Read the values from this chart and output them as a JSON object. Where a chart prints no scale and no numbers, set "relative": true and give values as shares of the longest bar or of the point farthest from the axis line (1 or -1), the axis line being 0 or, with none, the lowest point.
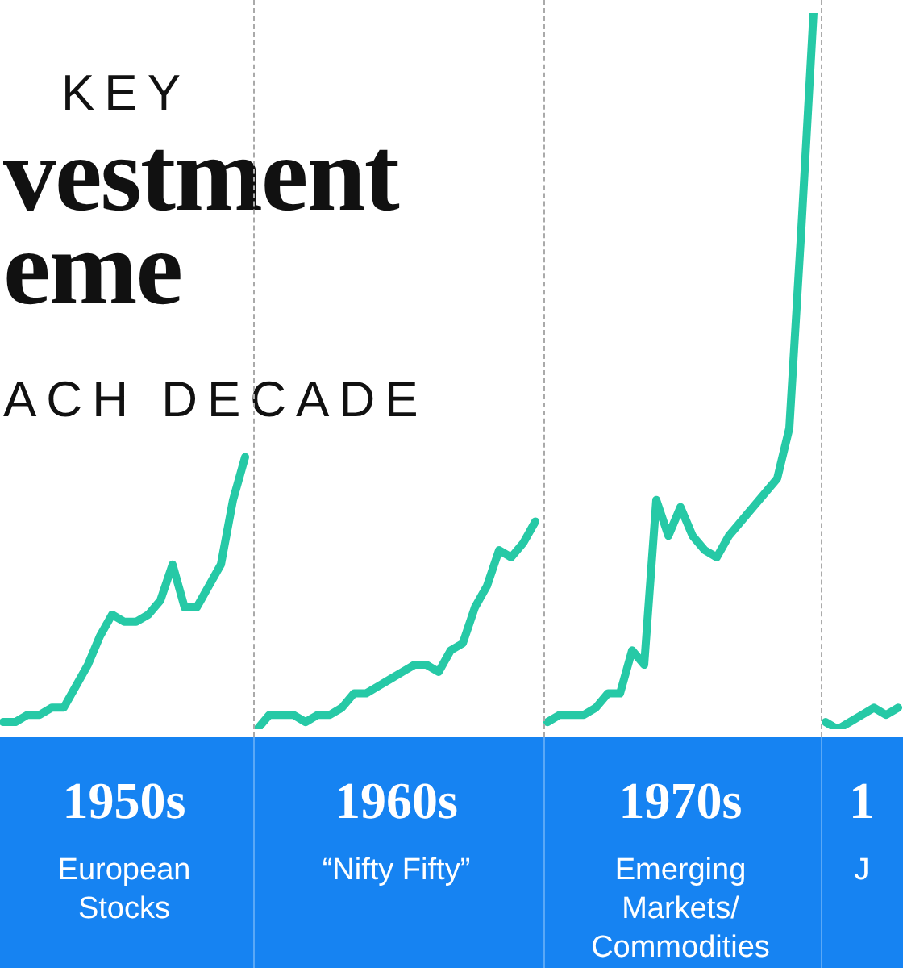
{
  "chart_data": {
    "type": "line",
    "subtitle": "KEY",
    "title": "vestment\neme",
    "annotations": [
      "ACH DECADE",
      "European Stocks",
      "“Nifty Fifty”",
      "Emerging Markets/ Commodities",
      "J"
    ],
    "relative": true,
    "categories": [
      null,
      null,
      null,
      null,
      null,
      null,
      null,
      null,
      null,
      null,
      null,
      null,
      null,
      null,
      null,
      null,
      null,
      null,
      null,
      null,
      null,
      null,
      null,
      null,
      null,
      null,
      null,
      null,
      null,
      null,
      null,
      null,
      null,
      null,
      null,
      null,
      null,
      null,
      null,
      null,
      null,
      null,
      null,
      null,
      null,
      null,
      null,
      null,
      null,
      null,
      null,
      null,
      null,
      null,
      null,
      null,
      null,
      null,
      null,
      null,
      null,
      null,
      null,
      null,
      null,
      null,
      null,
      null,
      null,
      null,
      null,
      null,
      null,
      null,
      null
    ],
    "series": [
      {
        "name": "1950s",
        "color": "#26c9a6",
        "values": [
          0.01,
          0.01,
          0.02,
          0.02,
          0.03,
          0.03,
          0.06,
          0.09,
          0.13,
          0.16,
          0.15,
          0.15,
          0.16,
          0.18,
          0.23,
          0.17,
          0.17,
          0.2,
          0.23,
          0.32,
          0.38,
          null,
          null,
          null,
          null,
          null,
          null,
          null,
          null,
          null,
          null,
          null,
          null,
          null,
          null,
          null,
          null,
          null,
          null,
          null,
          null,
          null,
          null,
          null,
          null,
          null,
          null,
          null,
          null,
          null,
          null,
          null,
          null,
          null,
          null,
          null,
          null,
          null,
          null,
          null,
          null,
          null,
          null,
          null,
          null,
          null,
          null,
          null,
          null,
          null,
          null,
          null,
          null,
          null,
          null
        ]
      },
      {
        "name": "1960s",
        "color": "#26c9a6",
        "values": [
          null,
          null,
          null,
          null,
          null,
          null,
          null,
          null,
          null,
          null,
          null,
          null,
          null,
          null,
          null,
          null,
          null,
          null,
          null,
          null,
          null,
          0,
          0.02,
          0.02,
          0.02,
          0.01,
          0.02,
          0.02,
          0.03,
          0.05,
          0.05,
          0.06,
          0.07,
          0.08,
          0.09,
          0.09,
          0.08,
          0.11,
          0.12,
          0.17,
          0.2,
          0.25,
          0.24,
          0.26,
          0.29,
          null,
          null,
          null,
          null,
          null,
          null,
          null,
          null,
          null,
          null,
          null,
          null,
          null,
          null,
          null,
          null,
          null,
          null,
          null,
          null,
          null,
          null,
          null,
          null,
          null,
          null,
          null,
          null,
          null,
          null
        ]
      },
      {
        "name": "1970s",
        "color": "#26c9a6",
        "values": [
          null,
          null,
          null,
          null,
          null,
          null,
          null,
          null,
          null,
          null,
          null,
          null,
          null,
          null,
          null,
          null,
          null,
          null,
          null,
          null,
          null,
          null,
          null,
          null,
          null,
          null,
          null,
          null,
          null,
          null,
          null,
          null,
          null,
          null,
          null,
          null,
          null,
          null,
          null,
          null,
          null,
          null,
          null,
          null,
          null,
          0.01,
          0.02,
          0.02,
          0.02,
          0.03,
          0.05,
          0.05,
          0.11,
          0.09,
          0.32,
          0.27,
          0.31,
          0.27,
          0.25,
          0.24,
          0.27,
          0.29,
          0.31,
          0.33,
          0.35,
          0.42,
          0.7,
          1,
          null,
          null,
          null,
          null,
          null,
          null,
          null
        ]
      },
      {
        "name": "1",
        "color": "#26c9a6",
        "values": [
          null,
          null,
          null,
          null,
          null,
          null,
          null,
          null,
          null,
          null,
          null,
          null,
          null,
          null,
          null,
          null,
          null,
          null,
          null,
          null,
          null,
          null,
          null,
          null,
          null,
          null,
          null,
          null,
          null,
          null,
          null,
          null,
          null,
          null,
          null,
          null,
          null,
          null,
          null,
          null,
          null,
          null,
          null,
          null,
          null,
          null,
          null,
          null,
          null,
          null,
          null,
          null,
          null,
          null,
          null,
          null,
          null,
          null,
          null,
          null,
          null,
          null,
          null,
          null,
          null,
          null,
          null,
          null,
          0.01,
          0,
          0.01,
          0.02,
          0.03,
          0.02,
          0.03
        ]
      }
    ]
  }
}
